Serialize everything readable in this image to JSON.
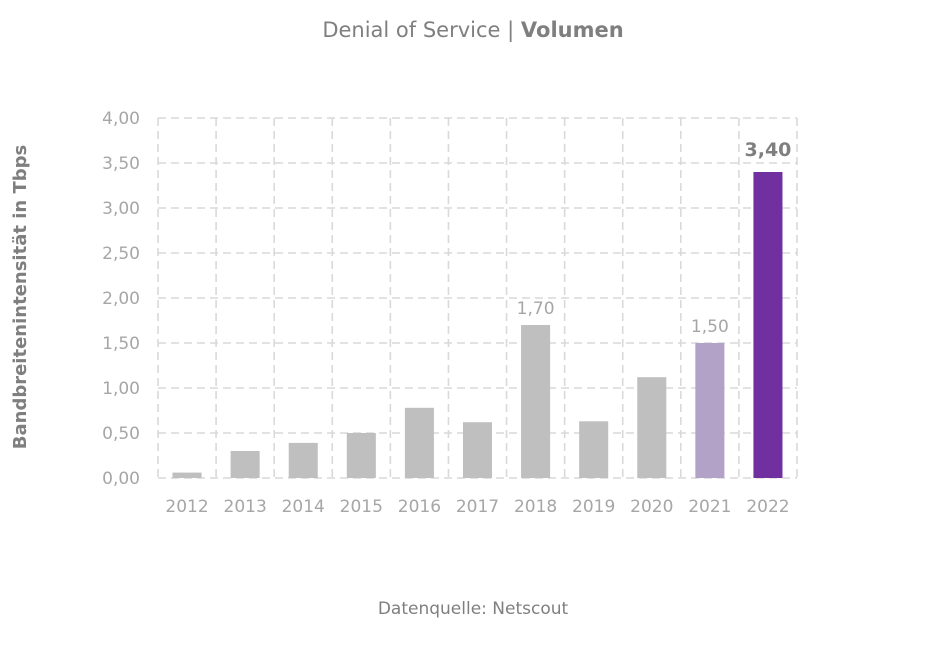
{
  "chart_data": {
    "type": "bar",
    "title": {
      "regular": "Denial of Service",
      "separator": " | ",
      "bold": "Volumen"
    },
    "ylabel": "Bandbreitenintensität in Tbps",
    "xlabel": "",
    "source": "Datenquelle: Netscout",
    "ylim": [
      0,
      4
    ],
    "y_ticks": [
      "0,00",
      "0,50",
      "1,00",
      "1,50",
      "2,00",
      "2,50",
      "3,00",
      "3,50",
      "4,00"
    ],
    "categories": [
      "2012",
      "2013",
      "2014",
      "2015",
      "2016",
      "2017",
      "2018",
      "2019",
      "2020",
      "2021",
      "2022"
    ],
    "values": [
      0.06,
      0.3,
      0.39,
      0.5,
      0.78,
      0.62,
      1.7,
      0.63,
      1.12,
      1.5,
      3.4
    ],
    "data_labels": [
      {
        "index": 6,
        "text": "1,70",
        "style": "normal"
      },
      {
        "index": 9,
        "text": "1,50",
        "style": "normal"
      },
      {
        "index": 10,
        "text": "3,40",
        "style": "bold"
      }
    ],
    "colors": {
      "default": "#bfbfbf",
      "2021": "#b3a2c7",
      "2022": "#7030a0"
    },
    "grid": true,
    "legend": "none"
  }
}
